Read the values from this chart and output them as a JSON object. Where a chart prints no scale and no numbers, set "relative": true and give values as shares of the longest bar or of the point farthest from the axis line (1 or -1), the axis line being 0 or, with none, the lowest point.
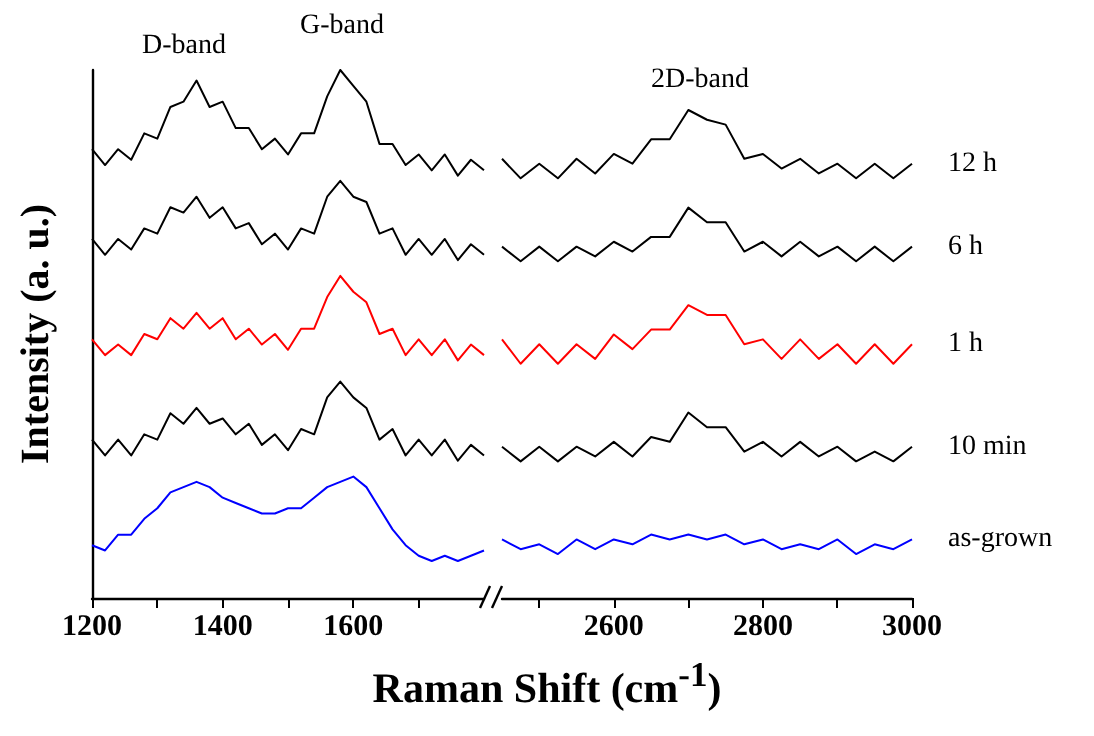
{
  "chart_data": [
    {
      "type": "line",
      "relative": true,
      "ylabel": "Intensity (a. u.)",
      "xlabel": "Raman Shift (cm$^{-1}$)",
      "xlim": [
        1200,
        1800
      ],
      "xticks": [
        1200,
        {
          "value": 1300,
          "label": null
        },
        1400,
        {
          "value": 1500,
          "label": null
        },
        1600,
        {
          "value": 1700,
          "label": null
        }
      ],
      "x": [
        1200,
        1220,
        1240,
        1260,
        1280,
        1300,
        1320,
        1340,
        1360,
        1380,
        1400,
        1420,
        1440,
        1460,
        1480,
        1500,
        1520,
        1540,
        1560,
        1580,
        1600,
        1620,
        1640,
        1660,
        1680,
        1700,
        1720,
        1740,
        1760,
        1780,
        1800
      ],
      "annotations": [
        "D-band",
        "G-band"
      ],
      "series": [
        {
          "color": "#000000",
          "values": [
            0.85,
            0.82,
            0.85,
            0.83,
            0.88,
            0.87,
            0.93,
            0.94,
            0.98,
            0.93,
            0.94,
            0.89,
            0.89,
            0.85,
            0.87,
            0.84,
            0.88,
            0.88,
            0.95,
            1.0,
            0.97,
            0.94,
            0.86,
            0.86,
            0.82,
            0.84,
            0.81,
            0.84,
            0.8,
            0.83,
            0.81
          ]
        },
        {
          "color": "#000000",
          "values": [
            0.68,
            0.65,
            0.68,
            0.66,
            0.7,
            0.69,
            0.74,
            0.73,
            0.76,
            0.72,
            0.74,
            0.7,
            0.71,
            0.67,
            0.69,
            0.66,
            0.7,
            0.69,
            0.76,
            0.79,
            0.76,
            0.75,
            0.69,
            0.7,
            0.65,
            0.68,
            0.65,
            0.68,
            0.64,
            0.67,
            0.65
          ]
        },
        {
          "color": "#ff0000",
          "values": [
            0.49,
            0.46,
            0.48,
            0.46,
            0.5,
            0.49,
            0.53,
            0.51,
            0.54,
            0.51,
            0.53,
            0.49,
            0.51,
            0.48,
            0.5,
            0.47,
            0.51,
            0.51,
            0.57,
            0.61,
            0.58,
            0.56,
            0.5,
            0.51,
            0.46,
            0.49,
            0.46,
            0.49,
            0.45,
            0.48,
            0.46
          ]
        },
        {
          "color": "#000000",
          "values": [
            0.3,
            0.27,
            0.3,
            0.27,
            0.31,
            0.3,
            0.35,
            0.33,
            0.36,
            0.33,
            0.34,
            0.31,
            0.33,
            0.29,
            0.31,
            0.28,
            0.32,
            0.31,
            0.38,
            0.41,
            0.38,
            0.36,
            0.3,
            0.32,
            0.27,
            0.3,
            0.27,
            0.3,
            0.26,
            0.29,
            0.27
          ]
        },
        {
          "color": "#0000ff",
          "values": [
            0.1,
            0.09,
            0.12,
            0.12,
            0.15,
            0.17,
            0.2,
            0.21,
            0.22,
            0.21,
            0.19,
            0.18,
            0.17,
            0.16,
            0.16,
            0.17,
            0.17,
            0.19,
            0.21,
            0.22,
            0.23,
            0.21,
            0.17,
            0.13,
            0.1,
            0.08,
            0.07,
            0.08,
            0.07,
            0.08,
            0.09
          ]
        }
      ]
    },
    {
      "type": "line",
      "relative": true,
      "xlim": [
        2450,
        3000
      ],
      "xticks": [
        {
          "value": 2500,
          "label": null
        },
        2600,
        {
          "value": 2700,
          "label": null
        },
        2800,
        {
          "value": 2900,
          "label": null
        },
        3000
      ],
      "x": [
        2450,
        2475,
        2500,
        2525,
        2550,
        2575,
        2600,
        2625,
        2650,
        2675,
        2700,
        2725,
        2750,
        2775,
        2800,
        2825,
        2850,
        2875,
        2900,
        2925,
        2950,
        2975,
        3000
      ],
      "annotations": [
        "2D-band"
      ],
      "series": [
        {
          "name": "12 h",
          "color": "#000000",
          "values": [
            0.9,
            0.86,
            0.89,
            0.86,
            0.9,
            0.87,
            0.91,
            0.89,
            0.94,
            0.94,
            1.0,
            0.98,
            0.97,
            0.9,
            0.91,
            0.88,
            0.9,
            0.87,
            0.89,
            0.86,
            0.89,
            0.86,
            0.89
          ]
        },
        {
          "name": "6 h",
          "color": "#000000",
          "values": [
            0.72,
            0.69,
            0.72,
            0.69,
            0.72,
            0.7,
            0.73,
            0.71,
            0.74,
            0.74,
            0.8,
            0.77,
            0.77,
            0.71,
            0.73,
            0.7,
            0.73,
            0.7,
            0.72,
            0.69,
            0.72,
            0.69,
            0.72
          ]
        },
        {
          "name": "1 h",
          "color": "#ff0000",
          "values": [
            0.53,
            0.48,
            0.52,
            0.48,
            0.52,
            0.49,
            0.54,
            0.51,
            0.55,
            0.55,
            0.6,
            0.58,
            0.58,
            0.52,
            0.53,
            0.49,
            0.53,
            0.49,
            0.52,
            0.48,
            0.52,
            0.48,
            0.52
          ]
        },
        {
          "name": "10 min",
          "color": "#000000",
          "values": [
            0.31,
            0.28,
            0.31,
            0.28,
            0.31,
            0.29,
            0.32,
            0.29,
            0.33,
            0.32,
            0.38,
            0.35,
            0.35,
            0.3,
            0.32,
            0.29,
            0.32,
            0.29,
            0.31,
            0.28,
            0.3,
            0.28,
            0.31
          ]
        },
        {
          "name": "as-grown",
          "color": "#0000ff",
          "values": [
            0.12,
            0.1,
            0.11,
            0.09,
            0.12,
            0.1,
            0.12,
            0.11,
            0.13,
            0.12,
            0.13,
            0.12,
            0.13,
            0.11,
            0.12,
            0.1,
            0.11,
            0.1,
            0.12,
            0.09,
            0.11,
            0.1,
            0.12
          ]
        }
      ]
    }
  ]
}
